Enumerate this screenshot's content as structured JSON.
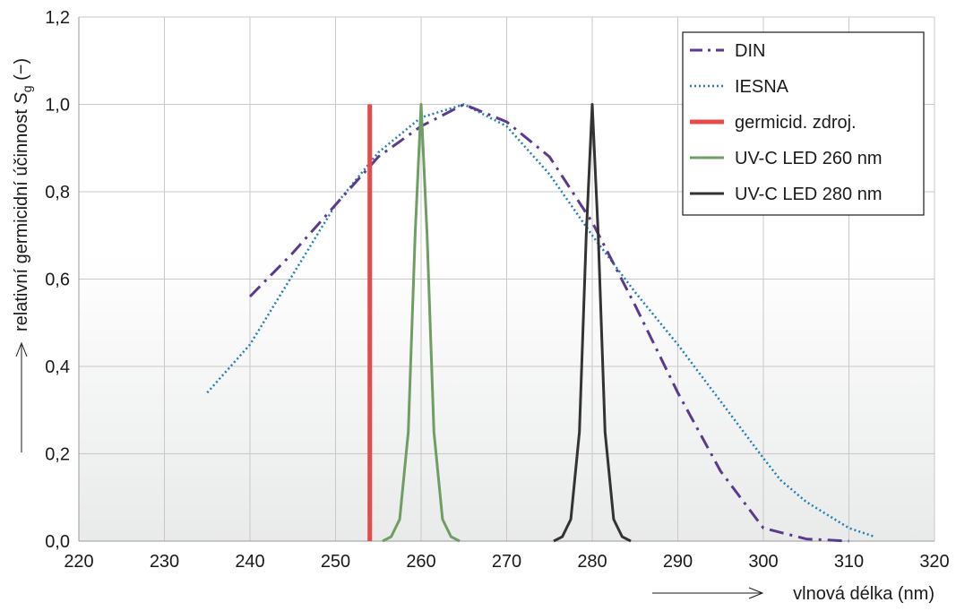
{
  "chart_data": {
    "type": "line",
    "title": "",
    "xlabel": "vlnová délka (nm)",
    "ylabel_main": "relativní germicidní účinnost ",
    "ylabel_symbol": "S",
    "ylabel_subscript": "g",
    "ylabel_unit": " (−)",
    "xlim": [
      220,
      320
    ],
    "ylim": [
      0,
      1.2
    ],
    "x_ticks": [
      220,
      230,
      240,
      250,
      260,
      270,
      280,
      290,
      300,
      310,
      320
    ],
    "y_ticks": [
      0,
      0.2,
      0.4,
      0.6,
      0.8,
      1.0,
      1.2
    ],
    "y_tick_labels": [
      "0,0",
      "0,2",
      "0,4",
      "0,6",
      "0,8",
      "1,0",
      "1,2"
    ],
    "grid": true,
    "legend_position": "top-right",
    "series": [
      {
        "name": "DIN",
        "color": "#5b3a8e",
        "style": "dash-dot",
        "points": [
          [
            240,
            0.56
          ],
          [
            245,
            0.66
          ],
          [
            250,
            0.77
          ],
          [
            255,
            0.88
          ],
          [
            260,
            0.95
          ],
          [
            265,
            1.0
          ],
          [
            270,
            0.96
          ],
          [
            275,
            0.88
          ],
          [
            280,
            0.73
          ],
          [
            285,
            0.54
          ],
          [
            290,
            0.34
          ],
          [
            295,
            0.16
          ],
          [
            300,
            0.03
          ],
          [
            305,
            0.005
          ],
          [
            310,
            0.0
          ]
        ]
      },
      {
        "name": "IESNA",
        "color": "#1f7fb8",
        "style": "dotted",
        "points": [
          [
            235,
            0.34
          ],
          [
            240,
            0.45
          ],
          [
            245,
            0.61
          ],
          [
            250,
            0.77
          ],
          [
            255,
            0.89
          ],
          [
            260,
            0.97
          ],
          [
            265,
            1.0
          ],
          [
            270,
            0.95
          ],
          [
            275,
            0.84
          ],
          [
            280,
            0.7
          ],
          [
            285,
            0.57
          ],
          [
            290,
            0.45
          ],
          [
            295,
            0.32
          ],
          [
            300,
            0.19
          ],
          [
            302,
            0.14
          ],
          [
            305,
            0.09
          ],
          [
            310,
            0.03
          ],
          [
            313,
            0.01
          ]
        ]
      },
      {
        "name": "germicid. zdroj.",
        "color": "#e84a4a",
        "style": "solid-thick",
        "points": [
          [
            254,
            0.0
          ],
          [
            254,
            1.0
          ]
        ]
      },
      {
        "name": "UV-C LED 260 nm",
        "color": "#6e9e64",
        "style": "solid",
        "points": [
          [
            255.5,
            0.0
          ],
          [
            256.5,
            0.01
          ],
          [
            257.5,
            0.05
          ],
          [
            258.5,
            0.25
          ],
          [
            259.3,
            0.7
          ],
          [
            260,
            1.0
          ],
          [
            260.7,
            0.7
          ],
          [
            261.5,
            0.25
          ],
          [
            262.5,
            0.05
          ],
          [
            263.5,
            0.01
          ],
          [
            264.5,
            0.0
          ]
        ]
      },
      {
        "name": "UV-C LED 280 nm",
        "color": "#333333",
        "style": "solid",
        "points": [
          [
            275.5,
            0.0
          ],
          [
            276.5,
            0.01
          ],
          [
            277.5,
            0.05
          ],
          [
            278.5,
            0.25
          ],
          [
            279.3,
            0.7
          ],
          [
            280,
            1.0
          ],
          [
            280.7,
            0.7
          ],
          [
            281.5,
            0.25
          ],
          [
            282.5,
            0.05
          ],
          [
            283.5,
            0.01
          ],
          [
            284.5,
            0.0
          ]
        ]
      }
    ]
  }
}
